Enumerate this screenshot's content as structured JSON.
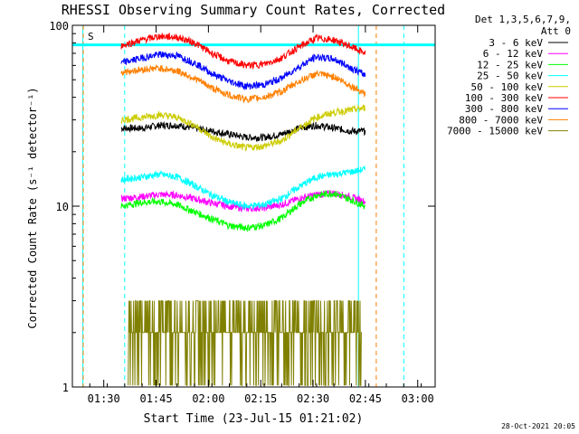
{
  "chart_data": {
    "type": "line",
    "title": "RHESSI Observing Summary Count Rates, Corrected",
    "xlabel": "Start Time (23-Jul-15 01:21:02)",
    "ylabel": "Corrected Count Rate (s⁻¹ detector⁻¹)",
    "y_scale": "log",
    "ylim": [
      1,
      100
    ],
    "xlim_minutes": [
      0,
      104
    ],
    "x_ticks": [
      {
        "label": "01:30",
        "min": 9
      },
      {
        "label": "01:45",
        "min": 24
      },
      {
        "label": "02:00",
        "min": 39
      },
      {
        "label": "02:15",
        "min": 54
      },
      {
        "label": "02:30",
        "min": 69
      },
      {
        "label": "02:45",
        "min": 84
      },
      {
        "label": "03:00",
        "min": 99
      }
    ],
    "y_ticks": [
      {
        "label": "100",
        "value": 100
      },
      {
        "label": "10",
        "value": 10
      },
      {
        "label": "1",
        "value": 1
      }
    ],
    "legend_header": [
      "Det 1,3,5,6,7,9,",
      "Att 0"
    ],
    "legend_position": "right",
    "annotation": "S",
    "series": [
      {
        "name": "3 - 6 keV",
        "color": "#000000",
        "x": [
          14,
          20,
          25,
          30,
          35,
          40,
          45,
          50,
          55,
          60,
          65,
          70,
          75,
          80,
          84
        ],
        "values": [
          27,
          27,
          28,
          28,
          27,
          26,
          25,
          24,
          24,
          25,
          27,
          28,
          27,
          26,
          26
        ]
      },
      {
        "name": "6 - 12 keV",
        "color": "#ff00ff",
        "x": [
          14,
          20,
          25,
          30,
          35,
          40,
          45,
          50,
          55,
          60,
          65,
          70,
          75,
          80,
          84
        ],
        "values": [
          11,
          11.3,
          11.6,
          11.5,
          11,
          10.4,
          10,
          9.7,
          9.8,
          10.2,
          11,
          11.6,
          11.8,
          11.2,
          10.6
        ]
      },
      {
        "name": "12 - 25 keV",
        "color": "#00ff00",
        "x": [
          14,
          20,
          25,
          30,
          35,
          40,
          45,
          50,
          55,
          60,
          65,
          70,
          75,
          80,
          84
        ],
        "values": [
          10,
          10.5,
          10.6,
          10.2,
          9.3,
          8.5,
          7.8,
          7.6,
          7.8,
          8.6,
          10.2,
          11.5,
          11.8,
          10.8,
          10
        ]
      },
      {
        "name": "25 - 50 keV",
        "color": "#00ffff",
        "x": [
          14,
          20,
          25,
          30,
          35,
          40,
          45,
          50,
          55,
          60,
          65,
          70,
          75,
          80,
          84
        ],
        "values": [
          14,
          14.5,
          15,
          14.5,
          13,
          11.5,
          10.5,
          10,
          10.2,
          11,
          12.8,
          14.5,
          15,
          15.5,
          16
        ]
      },
      {
        "name": "50 - 100 keV",
        "color": "#cccc00",
        "x": [
          14,
          20,
          25,
          30,
          35,
          40,
          45,
          50,
          55,
          60,
          65,
          70,
          75,
          80,
          84
        ],
        "values": [
          30,
          31,
          32,
          31,
          28,
          24,
          22,
          21,
          21.5,
          23,
          27,
          31,
          33,
          34,
          35
        ]
      },
      {
        "name": "100 - 300 keV",
        "color": "#ff0000",
        "x": [
          14,
          20,
          25,
          30,
          35,
          40,
          45,
          50,
          55,
          60,
          65,
          70,
          75,
          80,
          84
        ],
        "values": [
          77,
          83,
          87,
          86,
          80,
          70,
          63,
          60,
          61,
          66,
          76,
          85,
          83,
          76,
          70
        ]
      },
      {
        "name": "300 - 800 keV",
        "color": "#0000ff",
        "x": [
          14,
          20,
          25,
          30,
          35,
          40,
          45,
          50,
          55,
          60,
          65,
          70,
          75,
          80,
          84
        ],
        "values": [
          62,
          66,
          69,
          68,
          62,
          54,
          49,
          46,
          47,
          51,
          59,
          67,
          65,
          58,
          53
        ]
      },
      {
        "name": "800 - 7000 keV",
        "color": "#ff8000",
        "x": [
          14,
          20,
          25,
          30,
          35,
          40,
          45,
          50,
          55,
          60,
          65,
          70,
          75,
          80,
          84
        ],
        "values": [
          55,
          57,
          58,
          56,
          51,
          45,
          41,
          39,
          40,
          43,
          49,
          54,
          52,
          46,
          42
        ]
      },
      {
        "name": "7000 - 15000 keV",
        "color": "#808000",
        "x": [
          16,
          20,
          22,
          24,
          28,
          32,
          36,
          44,
          50,
          56,
          61,
          65,
          68,
          70,
          72,
          76,
          80,
          83
        ],
        "values": [
          2,
          2,
          3,
          3,
          2,
          2,
          2,
          2,
          2,
          2,
          2,
          2,
          2,
          3,
          3,
          3,
          2,
          2
        ]
      }
    ],
    "vertical_lines_cyan": [
      3,
      15,
      82,
      95
    ],
    "vertical_lines_orange": [
      0,
      84
    ]
  },
  "footer": {
    "timestamp": "28-Oct-2021 20:05"
  }
}
